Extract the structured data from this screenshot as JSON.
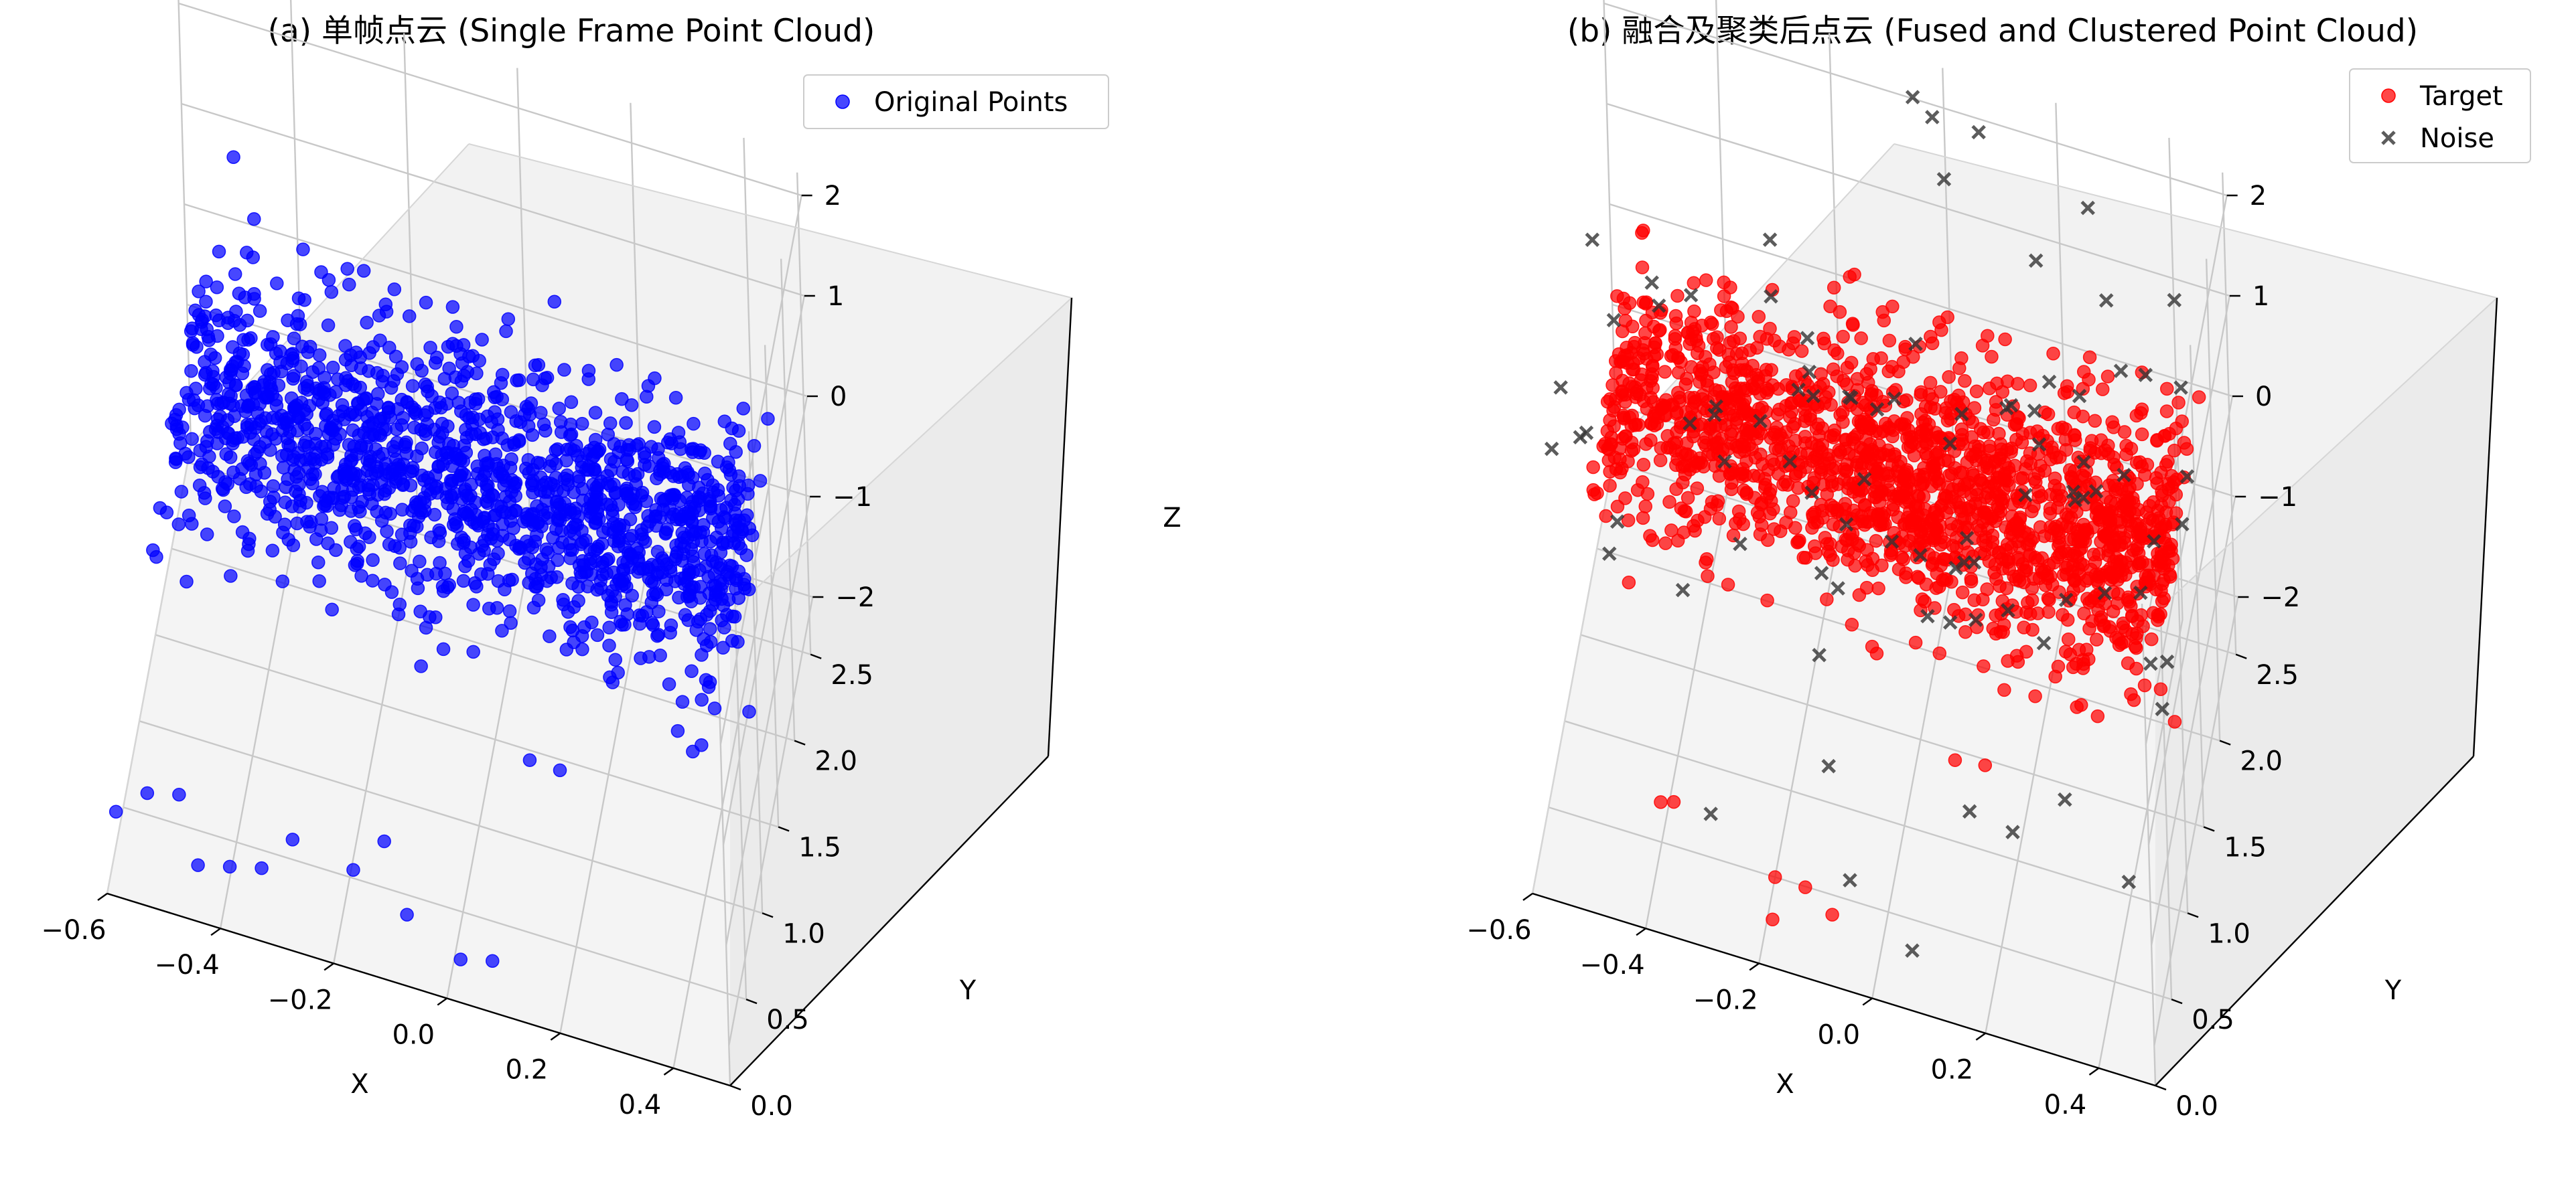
{
  "colors": {
    "blue": "#0000ff",
    "red": "#ff0000",
    "noise": "#333333",
    "pane_back": "#f2f2f2",
    "pane_side": "#ebebeb",
    "pane_floor": "#f4f4f4",
    "grid": "#c8c8c8"
  },
  "chart_data": [
    {
      "type": "scatter",
      "title": "(a) 单帧点云 (Single Frame Point Cloud)",
      "xlabel": "X",
      "ylabel": "Y",
      "zlabel": "Z",
      "xlim": [
        -0.6,
        0.5
      ],
      "ylim": [
        0.0,
        2.6
      ],
      "zlim": [
        -2.4,
        2.4
      ],
      "x_ticks": [
        "−0.6",
        "−0.4",
        "−0.2",
        "0.0",
        "0.2",
        "0.4"
      ],
      "y_ticks": [
        "0.0",
        "0.5",
        "1.0",
        "1.5",
        "2.0",
        "2.5"
      ],
      "z_ticks": [
        "−2",
        "−1",
        "0",
        "1",
        "2"
      ],
      "legend_position": "top-right",
      "grid": true,
      "series": [
        {
          "name": "Original Points",
          "marker": "circle",
          "color": "#0000ff",
          "count": 1500,
          "cloud": {
            "x_range": [
              -0.55,
              0.45
            ],
            "y_center": 1.6,
            "y_spread": 0.35,
            "z_center": 0.0,
            "z_spread": 0.15
          },
          "outliers": [
            [
              -0.45,
              2.2,
              0.8
            ],
            [
              -0.5,
              2.45,
              0.9
            ],
            [
              -0.2,
              1.9,
              0.9
            ],
            [
              -0.05,
              1.7,
              1.1
            ],
            [
              0.1,
              1.6,
              1.2
            ],
            [
              0.15,
              1.5,
              1.0
            ],
            [
              0.0,
              1.8,
              0.5
            ],
            [
              0.2,
              1.4,
              0.6
            ],
            [
              -0.3,
              1.2,
              0.3
            ],
            [
              0.45,
              1.3,
              -0.3
            ],
            [
              0.48,
              1.1,
              -0.6
            ],
            [
              0.4,
              1.0,
              -0.9
            ],
            [
              0.1,
              0.9,
              -1.4
            ],
            [
              0.15,
              0.95,
              -1.5
            ],
            [
              -0.55,
              0.4,
              -2.0
            ],
            [
              -0.5,
              0.5,
              -2.1
            ],
            [
              -0.4,
              0.3,
              -2.3
            ],
            [
              -0.35,
              0.4,
              -2.4
            ],
            [
              -0.3,
              0.5,
              -2.2
            ],
            [
              -0.2,
              0.6,
              -2.5
            ],
            [
              -0.15,
              0.7,
              -2.3
            ],
            [
              -0.1,
              0.5,
              -2.6
            ],
            [
              0.0,
              0.4,
              -2.7
            ],
            [
              0.05,
              0.5,
              -2.8
            ],
            [
              -0.45,
              0.2,
              -2.2
            ],
            [
              -0.6,
              0.3,
              -2.1
            ]
          ]
        }
      ]
    },
    {
      "type": "scatter",
      "title": "(b) 融合及聚类后点云 (Fused and Clustered Point Cloud)",
      "xlabel": "X",
      "ylabel": "Y",
      "zlabel": "Z",
      "xlim": [
        -0.6,
        0.5
      ],
      "ylim": [
        0.0,
        2.6
      ],
      "zlim": [
        -2.4,
        2.4
      ],
      "x_ticks": [
        "−0.6",
        "−0.4",
        "−0.2",
        "0.0",
        "0.2",
        "0.4"
      ],
      "y_ticks": [
        "0.0",
        "0.5",
        "1.0",
        "1.5",
        "2.0",
        "2.5"
      ],
      "z_ticks": [
        "−2",
        "−1",
        "0",
        "1",
        "2"
      ],
      "legend_position": "top-right",
      "grid": true,
      "series": [
        {
          "name": "Target",
          "marker": "circle",
          "color": "#ff0000",
          "count": 1800,
          "cloud": {
            "x_range": [
              -0.55,
              0.45
            ],
            "y_center": 1.6,
            "y_spread": 0.35,
            "z_center": 0.0,
            "z_spread": 0.15
          },
          "outliers": [
            [
              0.45,
              1.2,
              -0.6
            ],
            [
              0.48,
              1.1,
              -0.7
            ],
            [
              0.4,
              1.15,
              -0.65
            ],
            [
              0.1,
              0.9,
              -1.4
            ],
            [
              0.15,
              0.95,
              -1.45
            ],
            [
              -0.4,
              0.5,
              -2.0
            ],
            [
              -0.38,
              0.55,
              -2.05
            ],
            [
              -0.2,
              0.5,
              -2.4
            ],
            [
              -0.15,
              0.55,
              -2.5
            ],
            [
              -0.1,
              0.5,
              -2.6
            ],
            [
              -0.2,
              0.4,
              -2.65
            ]
          ]
        },
        {
          "name": "Noise",
          "marker": "x",
          "color": "#333333",
          "count": 90,
          "cloud": {
            "x_range": [
              -0.6,
              0.5
            ],
            "y_center": 1.6,
            "y_spread": 0.7,
            "z_center": 0.0,
            "z_spread": 1.2
          }
        }
      ]
    }
  ]
}
